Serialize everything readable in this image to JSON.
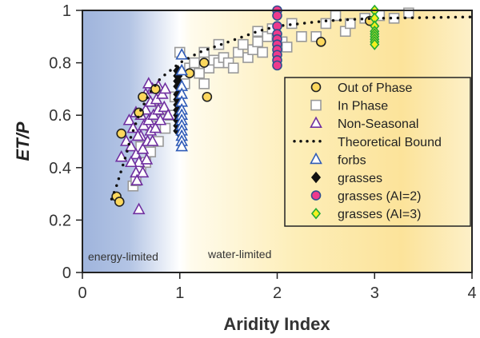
{
  "chart_data": {
    "type": "scatter",
    "xlabel": "Aridity Index",
    "ylabel": "ET/P",
    "xlim": [
      0,
      4
    ],
    "ylim": [
      0,
      1
    ],
    "xticks": [
      "0",
      "1",
      "2",
      "3",
      "4"
    ],
    "yticks": [
      "0",
      "0.2",
      "0.4",
      "0.6",
      "0.8",
      "1"
    ],
    "grid": false,
    "legend_placement": "right",
    "annotations": [
      "energy-limited",
      "water-limited"
    ],
    "series": [
      {
        "name": "Out of Phase",
        "marker": "circle",
        "fill": "#fdd85d",
        "stroke": "#222222",
        "points": [
          [
            0.35,
            0.29
          ],
          [
            0.38,
            0.27
          ],
          [
            0.4,
            0.53
          ],
          [
            0.58,
            0.61
          ],
          [
            0.62,
            0.67
          ],
          [
            0.75,
            0.7
          ],
          [
            1.1,
            0.76
          ],
          [
            1.25,
            0.8
          ],
          [
            1.28,
            0.67
          ],
          [
            2.45,
            0.88
          ],
          [
            2.95,
            0.96
          ]
        ]
      },
      {
        "name": "In Phase",
        "marker": "square",
        "fill": "#ffffff",
        "stroke": "#999999",
        "points": [
          [
            0.52,
            0.33
          ],
          [
            0.55,
            0.35
          ],
          [
            0.6,
            0.4
          ],
          [
            0.65,
            0.42
          ],
          [
            0.7,
            0.46
          ],
          [
            0.78,
            0.5
          ],
          [
            0.85,
            0.55
          ],
          [
            0.9,
            0.6
          ],
          [
            0.95,
            0.67
          ],
          [
            1.0,
            0.84
          ],
          [
            1.05,
            0.72
          ],
          [
            1.1,
            0.78
          ],
          [
            1.15,
            0.8
          ],
          [
            1.2,
            0.76
          ],
          [
            1.25,
            0.72
          ],
          [
            1.3,
            0.78
          ],
          [
            1.35,
            0.81
          ],
          [
            1.4,
            0.8
          ],
          [
            1.45,
            0.82
          ],
          [
            1.5,
            0.8
          ],
          [
            1.55,
            0.78
          ],
          [
            1.6,
            0.84
          ],
          [
            1.65,
            0.87
          ],
          [
            1.7,
            0.82
          ],
          [
            1.75,
            0.85
          ],
          [
            1.8,
            0.88
          ],
          [
            1.85,
            0.84
          ],
          [
            1.9,
            0.9
          ],
          [
            1.95,
            0.93
          ],
          [
            2.05,
            0.88
          ],
          [
            2.1,
            0.86
          ],
          [
            2.15,
            0.95
          ],
          [
            2.25,
            0.9
          ],
          [
            2.4,
            0.9
          ],
          [
            2.5,
            0.95
          ],
          [
            2.6,
            0.98
          ],
          [
            2.7,
            0.92
          ],
          [
            2.75,
            0.95
          ],
          [
            2.9,
            0.97
          ],
          [
            3.05,
            0.98
          ],
          [
            3.2,
            0.97
          ],
          [
            3.35,
            0.99
          ],
          [
            0.6,
            0.48
          ],
          [
            0.7,
            0.56
          ],
          [
            0.8,
            0.62
          ],
          [
            1.25,
            0.84
          ],
          [
            1.4,
            0.87
          ],
          [
            1.8,
            0.92
          ]
        ]
      },
      {
        "name": "Non-Seasonal",
        "marker": "triangle",
        "fill": "#ffffff",
        "stroke": "#7030a0",
        "points": [
          [
            0.4,
            0.44
          ],
          [
            0.45,
            0.5
          ],
          [
            0.48,
            0.58
          ],
          [
            0.5,
            0.48
          ],
          [
            0.52,
            0.55
          ],
          [
            0.55,
            0.45
          ],
          [
            0.55,
            0.38
          ],
          [
            0.56,
            0.35
          ],
          [
            0.58,
            0.42
          ],
          [
            0.58,
            0.24
          ],
          [
            0.6,
            0.52
          ],
          [
            0.6,
            0.6
          ],
          [
            0.62,
            0.47
          ],
          [
            0.63,
            0.56
          ],
          [
            0.65,
            0.62
          ],
          [
            0.65,
            0.68
          ],
          [
            0.67,
            0.5
          ],
          [
            0.68,
            0.58
          ],
          [
            0.7,
            0.65
          ],
          [
            0.7,
            0.54
          ],
          [
            0.72,
            0.7
          ],
          [
            0.73,
            0.6
          ],
          [
            0.75,
            0.55
          ],
          [
            0.76,
            0.66
          ],
          [
            0.78,
            0.62
          ],
          [
            0.78,
            0.71
          ],
          [
            0.8,
            0.58
          ],
          [
            0.82,
            0.68
          ],
          [
            0.84,
            0.63
          ],
          [
            0.85,
            0.7
          ],
          [
            0.66,
            0.43
          ],
          [
            0.62,
            0.38
          ],
          [
            0.5,
            0.42
          ],
          [
            0.57,
            0.52
          ],
          [
            0.72,
            0.5
          ],
          [
            0.88,
            0.6
          ],
          [
            0.55,
            0.61
          ],
          [
            0.68,
            0.72
          ]
        ]
      },
      {
        "name": "Theoretical Bound",
        "marker": "dotted-line",
        "stroke": "#111111",
        "points": [
          [
            0.3,
            0.28
          ],
          [
            0.35,
            0.33
          ],
          [
            0.4,
            0.39
          ],
          [
            0.45,
            0.45
          ],
          [
            0.5,
            0.52
          ],
          [
            0.55,
            0.57
          ],
          [
            0.6,
            0.62
          ],
          [
            0.7,
            0.69
          ],
          [
            0.8,
            0.74
          ],
          [
            0.9,
            0.77
          ],
          [
            1.0,
            0.8
          ],
          [
            1.2,
            0.84
          ],
          [
            1.5,
            0.88
          ],
          [
            1.8,
            0.92
          ],
          [
            2.0,
            0.94
          ],
          [
            2.5,
            0.96
          ],
          [
            3.0,
            0.97
          ],
          [
            4.0,
            0.975
          ]
        ]
      },
      {
        "name": "forbs",
        "marker": "triangle",
        "fill": "#ffffff",
        "stroke": "#2f5bb7",
        "points": [
          [
            1.02,
            0.83
          ],
          [
            1.02,
            0.77
          ],
          [
            1.02,
            0.71
          ],
          [
            1.02,
            0.68
          ],
          [
            1.02,
            0.65
          ],
          [
            1.02,
            0.62
          ],
          [
            1.02,
            0.6
          ],
          [
            1.02,
            0.58
          ],
          [
            1.02,
            0.56
          ],
          [
            1.02,
            0.54
          ],
          [
            1.02,
            0.52
          ],
          [
            1.02,
            0.5
          ],
          [
            1.02,
            0.48
          ]
        ]
      },
      {
        "name": "grasses",
        "marker": "diamond",
        "fill": "#111111",
        "stroke": "#111111",
        "points": [
          [
            0.98,
            0.77
          ],
          [
            0.98,
            0.75
          ],
          [
            0.98,
            0.73
          ],
          [
            0.98,
            0.71
          ],
          [
            0.98,
            0.68
          ],
          [
            0.98,
            0.66
          ],
          [
            0.98,
            0.64
          ],
          [
            0.98,
            0.62
          ],
          [
            0.98,
            0.6
          ],
          [
            0.98,
            0.58
          ],
          [
            0.98,
            0.56
          ],
          [
            0.98,
            0.54
          ]
        ]
      },
      {
        "name": "grasses (AI=2)",
        "marker": "circle",
        "fill": "#ee3a8c",
        "stroke": "#2f4f8f",
        "points": [
          [
            2,
            1.0
          ],
          [
            2,
            0.98
          ],
          [
            2,
            0.94
          ],
          [
            2,
            0.91
          ],
          [
            2,
            0.89
          ],
          [
            2,
            0.87
          ],
          [
            2,
            0.85
          ],
          [
            2,
            0.83
          ],
          [
            2,
            0.81
          ],
          [
            2,
            0.79
          ]
        ]
      },
      {
        "name": "grasses (AI=3)",
        "marker": "diamond",
        "fill": "#f5f01e",
        "stroke": "#22aa33",
        "points": [
          [
            3,
            1.0
          ],
          [
            3,
            0.97
          ],
          [
            3,
            0.94
          ],
          [
            3,
            0.92
          ],
          [
            3,
            0.91
          ],
          [
            3,
            0.9
          ],
          [
            3,
            0.89
          ],
          [
            3,
            0.88
          ],
          [
            3,
            0.87
          ]
        ]
      }
    ]
  }
}
